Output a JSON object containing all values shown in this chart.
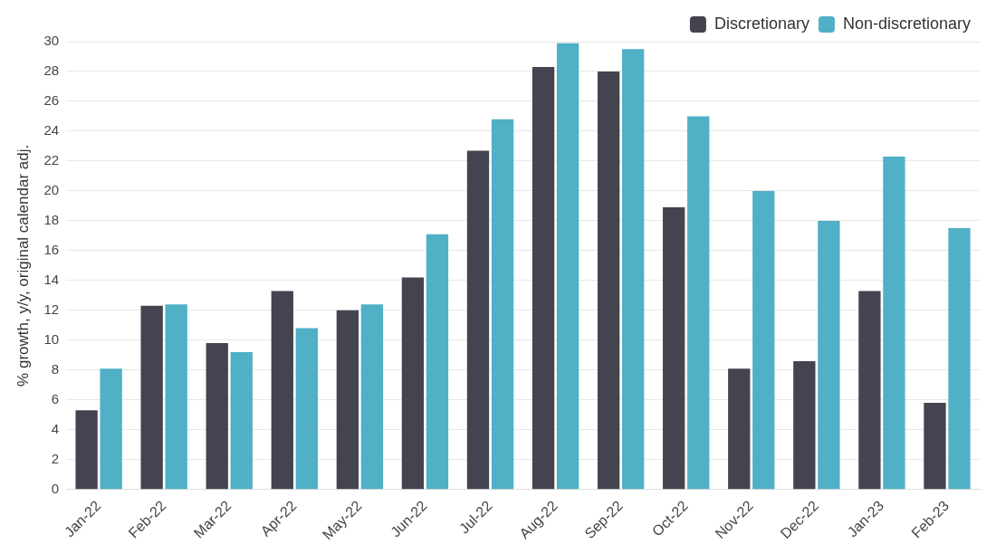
{
  "chart_data": {
    "type": "bar",
    "ylabel": "% growth, y/y, original calendar adj.",
    "categories": [
      "Jan-22",
      "Feb-22",
      "Mar-22",
      "Apr-22",
      "May-22",
      "Jun-22",
      "Jul-22",
      "Aug-22",
      "Sep-22",
      "Oct-22",
      "Nov-22",
      "Dec-22",
      "Jan-23",
      "Feb-23"
    ],
    "series": [
      {
        "name": "Discretionary",
        "color": "#43444f",
        "values": [
          5.3,
          12.3,
          9.8,
          13.3,
          12.0,
          14.2,
          22.7,
          28.3,
          28.0,
          18.9,
          8.1,
          8.6,
          13.3,
          5.8
        ]
      },
      {
        "name": "Non-discretionary",
        "color": "#4fb0c6",
        "values": [
          8.1,
          12.4,
          9.2,
          10.8,
          12.4,
          17.1,
          24.8,
          29.9,
          29.5,
          25.0,
          20.0,
          18.0,
          22.3,
          17.5
        ]
      }
    ],
    "ylim": [
      0,
      30
    ],
    "yticks": [
      0,
      2,
      4,
      6,
      8,
      10,
      12,
      14,
      16,
      18,
      20,
      22,
      24,
      26,
      28,
      30
    ],
    "grid": "y",
    "legend": "top right"
  }
}
